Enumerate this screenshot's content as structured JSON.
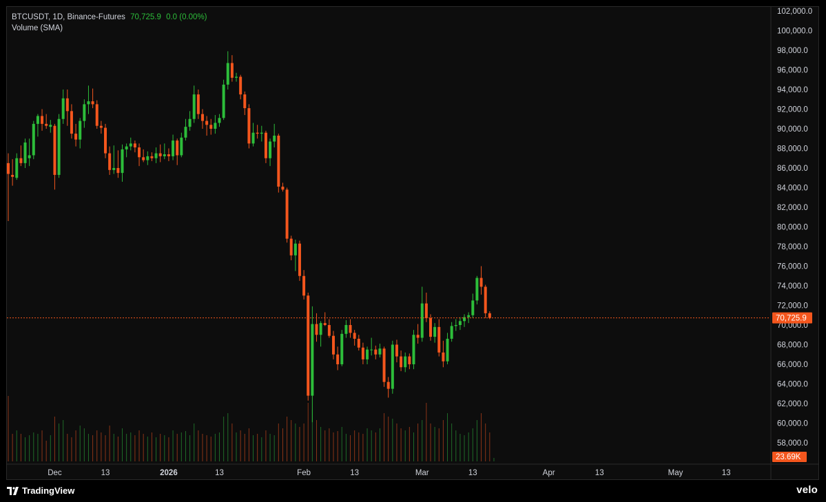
{
  "legend": {
    "symbol_line": "BTCUSDT, 1D, Binance-Futures",
    "last_price": "70,725.9",
    "change": "0.0 (0.00%)",
    "volume_line": "Volume (SMA)"
  },
  "price_tag": "70,725.9",
  "volume_tag": "23.69K",
  "footer": {
    "brand": "TradingView",
    "watermark": "velo"
  },
  "colors": {
    "up": "#2dbd3a",
    "down": "#f4561d",
    "background": "#0d0d0d",
    "text": "#d1d4dc",
    "last_price_line": "#f4561d"
  },
  "chart_data": {
    "type": "candlestick",
    "title": "BTCUSDT, 1D, Binance-Futures",
    "y_axis": {
      "ylim": [
        55500,
        102500
      ],
      "ticks": [
        "102,000.0",
        "100,000.0",
        "98,000.0",
        "96,000.0",
        "94,000.0",
        "92,000.0",
        "90,000.0",
        "88,000.0",
        "86,000.0",
        "84,000.0",
        "82,000.0",
        "80,000.0",
        "78,000.0",
        "76,000.0",
        "74,000.0",
        "72,000.0",
        "70,000.0",
        "68,000.0",
        "66,000.0",
        "64,000.0",
        "62,000.0",
        "60,000.0",
        "58,000.0"
      ],
      "tick_values": [
        102000,
        100000,
        98000,
        96000,
        94000,
        92000,
        90000,
        88000,
        86000,
        84000,
        82000,
        80000,
        78000,
        76000,
        74000,
        72000,
        70000,
        68000,
        66000,
        64000,
        62000,
        60000,
        58000
      ]
    },
    "x_axis": {
      "tick_labels": [
        "Dec",
        "13",
        "2026",
        "13",
        "Feb",
        "13",
        "Mar",
        "13",
        "Apr",
        "13",
        "May",
        "13"
      ],
      "tick_bar_index": [
        11,
        23,
        38,
        50,
        70,
        82,
        98,
        110,
        128,
        140,
        158,
        170
      ],
      "bold_labels": [
        "2026"
      ]
    },
    "last_price": 70725.9,
    "volume_last": "23.69K",
    "candles": [
      {
        "o": 86500,
        "h": 87500,
        "l": 80600,
        "c": 85400
      },
      {
        "o": 85300,
        "h": 86900,
        "l": 84200,
        "c": 85100
      },
      {
        "o": 85000,
        "h": 87500,
        "l": 84800,
        "c": 87000
      },
      {
        "o": 87000,
        "h": 88300,
        "l": 86200,
        "c": 86500
      },
      {
        "o": 86500,
        "h": 89000,
        "l": 86000,
        "c": 88600
      },
      {
        "o": 87000,
        "h": 89000,
        "l": 86200,
        "c": 87300
      },
      {
        "o": 87300,
        "h": 90800,
        "l": 86900,
        "c": 90500
      },
      {
        "o": 90500,
        "h": 91500,
        "l": 89200,
        "c": 91300
      },
      {
        "o": 91300,
        "h": 92000,
        "l": 89800,
        "c": 90500
      },
      {
        "o": 90500,
        "h": 91500,
        "l": 90000,
        "c": 90300
      },
      {
        "o": 90200,
        "h": 90900,
        "l": 89600,
        "c": 90400
      },
      {
        "o": 90300,
        "h": 90500,
        "l": 83800,
        "c": 85300
      },
      {
        "o": 85300,
        "h": 91500,
        "l": 85000,
        "c": 91000
      },
      {
        "o": 91000,
        "h": 94000,
        "l": 90500,
        "c": 93100
      },
      {
        "o": 93100,
        "h": 94000,
        "l": 90300,
        "c": 91800
      },
      {
        "o": 91800,
        "h": 92500,
        "l": 89000,
        "c": 89500
      },
      {
        "o": 89500,
        "h": 90500,
        "l": 88200,
        "c": 88900
      },
      {
        "o": 88900,
        "h": 91100,
        "l": 88000,
        "c": 90800
      },
      {
        "o": 90800,
        "h": 93000,
        "l": 90100,
        "c": 92500
      },
      {
        "o": 92500,
        "h": 94400,
        "l": 91500,
        "c": 92800
      },
      {
        "o": 92800,
        "h": 94100,
        "l": 92100,
        "c": 92500
      },
      {
        "o": 92500,
        "h": 92900,
        "l": 90000,
        "c": 90300
      },
      {
        "o": 90300,
        "h": 90800,
        "l": 89500,
        "c": 90100
      },
      {
        "o": 90100,
        "h": 90500,
        "l": 87000,
        "c": 87500
      },
      {
        "o": 87500,
        "h": 88200,
        "l": 85300,
        "c": 85800
      },
      {
        "o": 85800,
        "h": 88300,
        "l": 85400,
        "c": 86000
      },
      {
        "o": 86000,
        "h": 87800,
        "l": 85000,
        "c": 85500
      },
      {
        "o": 85500,
        "h": 88400,
        "l": 84600,
        "c": 87900
      },
      {
        "o": 87900,
        "h": 88500,
        "l": 87100,
        "c": 88200
      },
      {
        "o": 88200,
        "h": 89100,
        "l": 87800,
        "c": 88500
      },
      {
        "o": 88500,
        "h": 88800,
        "l": 87600,
        "c": 88100
      },
      {
        "o": 88100,
        "h": 88500,
        "l": 86200,
        "c": 87100
      },
      {
        "o": 87100,
        "h": 87900,
        "l": 86600,
        "c": 86800
      },
      {
        "o": 86800,
        "h": 87700,
        "l": 86300,
        "c": 87200
      },
      {
        "o": 87200,
        "h": 87600,
        "l": 86700,
        "c": 87000
      },
      {
        "o": 87000,
        "h": 88100,
        "l": 86500,
        "c": 87500
      },
      {
        "o": 87500,
        "h": 88400,
        "l": 86600,
        "c": 87200
      },
      {
        "o": 87200,
        "h": 88500,
        "l": 86900,
        "c": 87400
      },
      {
        "o": 87400,
        "h": 88000,
        "l": 86700,
        "c": 87200
      },
      {
        "o": 87200,
        "h": 89400,
        "l": 86800,
        "c": 88800
      },
      {
        "o": 88800,
        "h": 89000,
        "l": 86300,
        "c": 87300
      },
      {
        "o": 87300,
        "h": 89600,
        "l": 87100,
        "c": 89100
      },
      {
        "o": 89100,
        "h": 91000,
        "l": 88800,
        "c": 90200
      },
      {
        "o": 90200,
        "h": 91800,
        "l": 89800,
        "c": 91000
      },
      {
        "o": 91000,
        "h": 94400,
        "l": 90600,
        "c": 93500
      },
      {
        "o": 93500,
        "h": 94000,
        "l": 91000,
        "c": 91500
      },
      {
        "o": 91500,
        "h": 92000,
        "l": 90000,
        "c": 90800
      },
      {
        "o": 90800,
        "h": 91300,
        "l": 89300,
        "c": 90400
      },
      {
        "o": 90400,
        "h": 91000,
        "l": 89400,
        "c": 90000
      },
      {
        "o": 90000,
        "h": 91400,
        "l": 89500,
        "c": 90600
      },
      {
        "o": 90600,
        "h": 91500,
        "l": 90200,
        "c": 91100
      },
      {
        "o": 91100,
        "h": 95000,
        "l": 90900,
        "c": 94500
      },
      {
        "o": 94500,
        "h": 97900,
        "l": 94000,
        "c": 96700
      },
      {
        "o": 96700,
        "h": 97500,
        "l": 94800,
        "c": 95200
      },
      {
        "o": 95200,
        "h": 95700,
        "l": 94800,
        "c": 95300
      },
      {
        "o": 95300,
        "h": 95500,
        "l": 93000,
        "c": 93500
      },
      {
        "o": 93500,
        "h": 93800,
        "l": 91400,
        "c": 92100
      },
      {
        "o": 92100,
        "h": 92500,
        "l": 88000,
        "c": 88500
      },
      {
        "o": 88500,
        "h": 90600,
        "l": 88200,
        "c": 89600
      },
      {
        "o": 89600,
        "h": 90400,
        "l": 89000,
        "c": 89500
      },
      {
        "o": 89500,
        "h": 90300,
        "l": 88700,
        "c": 89600
      },
      {
        "o": 89600,
        "h": 89800,
        "l": 86500,
        "c": 87000
      },
      {
        "o": 87000,
        "h": 89000,
        "l": 86200,
        "c": 88700
      },
      {
        "o": 88700,
        "h": 90500,
        "l": 88100,
        "c": 89300
      },
      {
        "o": 89300,
        "h": 89500,
        "l": 83500,
        "c": 84100
      },
      {
        "o": 84100,
        "h": 84500,
        "l": 83600,
        "c": 83800
      },
      {
        "o": 83800,
        "h": 84000,
        "l": 78400,
        "c": 78800
      },
      {
        "o": 78800,
        "h": 79100,
        "l": 76600,
        "c": 77100
      },
      {
        "o": 77100,
        "h": 78700,
        "l": 75500,
        "c": 78300
      },
      {
        "o": 78300,
        "h": 78600,
        "l": 74500,
        "c": 75000
      },
      {
        "o": 75000,
        "h": 75600,
        "l": 72600,
        "c": 73000
      },
      {
        "o": 73000,
        "h": 73300,
        "l": 62300,
        "c": 62800
      },
      {
        "o": 62800,
        "h": 71900,
        "l": 60100,
        "c": 70100
      },
      {
        "o": 70100,
        "h": 71200,
        "l": 68300,
        "c": 69000
      },
      {
        "o": 69000,
        "h": 70400,
        "l": 67800,
        "c": 70200
      },
      {
        "o": 70200,
        "h": 71300,
        "l": 69900,
        "c": 70000
      },
      {
        "o": 70000,
        "h": 70600,
        "l": 68700,
        "c": 68900
      },
      {
        "o": 68900,
        "h": 69400,
        "l": 66500,
        "c": 67000
      },
      {
        "o": 67000,
        "h": 67800,
        "l": 65400,
        "c": 66000
      },
      {
        "o": 66000,
        "h": 69500,
        "l": 65800,
        "c": 69100
      },
      {
        "o": 69100,
        "h": 70500,
        "l": 68700,
        "c": 70000
      },
      {
        "o": 70000,
        "h": 70600,
        "l": 68700,
        "c": 69200
      },
      {
        "o": 69200,
        "h": 69500,
        "l": 67900,
        "c": 68600
      },
      {
        "o": 68600,
        "h": 69000,
        "l": 67400,
        "c": 67700
      },
      {
        "o": 67700,
        "h": 68200,
        "l": 66000,
        "c": 66500
      },
      {
        "o": 66500,
        "h": 67800,
        "l": 66000,
        "c": 67500
      },
      {
        "o": 67500,
        "h": 68700,
        "l": 66900,
        "c": 67500
      },
      {
        "o": 67500,
        "h": 67900,
        "l": 66500,
        "c": 67000
      },
      {
        "o": 67000,
        "h": 68100,
        "l": 66700,
        "c": 67600
      },
      {
        "o": 67600,
        "h": 67800,
        "l": 63700,
        "c": 64200
      },
      {
        "o": 64200,
        "h": 64700,
        "l": 62600,
        "c": 63500
      },
      {
        "o": 63500,
        "h": 68400,
        "l": 63000,
        "c": 68000
      },
      {
        "o": 68000,
        "h": 68500,
        "l": 66200,
        "c": 66800
      },
      {
        "o": 66800,
        "h": 67400,
        "l": 65300,
        "c": 65700
      },
      {
        "o": 65700,
        "h": 67200,
        "l": 65200,
        "c": 66800
      },
      {
        "o": 66800,
        "h": 67100,
        "l": 65500,
        "c": 66000
      },
      {
        "o": 66000,
        "h": 69500,
        "l": 65500,
        "c": 69000
      },
      {
        "o": 69000,
        "h": 70100,
        "l": 68100,
        "c": 68700
      },
      {
        "o": 68700,
        "h": 73900,
        "l": 68300,
        "c": 72200
      },
      {
        "o": 72200,
        "h": 73300,
        "l": 70300,
        "c": 70700
      },
      {
        "o": 70700,
        "h": 71100,
        "l": 68400,
        "c": 68800
      },
      {
        "o": 68800,
        "h": 70200,
        "l": 68200,
        "c": 69800
      },
      {
        "o": 69800,
        "h": 70600,
        "l": 66800,
        "c": 67200
      },
      {
        "o": 67200,
        "h": 68400,
        "l": 65700,
        "c": 66300
      },
      {
        "o": 66300,
        "h": 69200,
        "l": 66000,
        "c": 68600
      },
      {
        "o": 68600,
        "h": 70300,
        "l": 68300,
        "c": 69900
      },
      {
        "o": 69900,
        "h": 70600,
        "l": 69400,
        "c": 70000
      },
      {
        "o": 70000,
        "h": 70800,
        "l": 69500,
        "c": 70400
      },
      {
        "o": 70400,
        "h": 71100,
        "l": 69800,
        "c": 70800
      },
      {
        "o": 70800,
        "h": 71300,
        "l": 70200,
        "c": 71000
      },
      {
        "o": 71000,
        "h": 73200,
        "l": 70700,
        "c": 72500
      },
      {
        "o": 72500,
        "h": 75000,
        "l": 72100,
        "c": 74800
      },
      {
        "o": 74800,
        "h": 76000,
        "l": 73100,
        "c": 73900
      },
      {
        "o": 73900,
        "h": 74100,
        "l": 70700,
        "c": 71200
      },
      {
        "o": 71200,
        "h": 71400,
        "l": 70600,
        "c": 70726
      }
    ],
    "volume": [
      95,
      40,
      45,
      40,
      35,
      38,
      42,
      40,
      45,
      30,
      38,
      65,
      55,
      60,
      40,
      35,
      45,
      52,
      48,
      40,
      38,
      45,
      42,
      38,
      52,
      40,
      36,
      48,
      40,
      42,
      38,
      45,
      40,
      36,
      42,
      35,
      40,
      38,
      35,
      45,
      40,
      42,
      44,
      38,
      55,
      45,
      40,
      38,
      36,
      40,
      42,
      65,
      70,
      55,
      42,
      45,
      40,
      48,
      38,
      40,
      35,
      45,
      40,
      38,
      55,
      48,
      65,
      60,
      55,
      50,
      55,
      85,
      75,
      60,
      50,
      45,
      48,
      42,
      44,
      50,
      40,
      38,
      45,
      42,
      40,
      48,
      45,
      42,
      48,
      70,
      65,
      62,
      55,
      48,
      45,
      50,
      42,
      55,
      60,
      85,
      55,
      50,
      48,
      60,
      70,
      55,
      45,
      40,
      38,
      42,
      48,
      60,
      70,
      55,
      42,
      5
    ]
  }
}
